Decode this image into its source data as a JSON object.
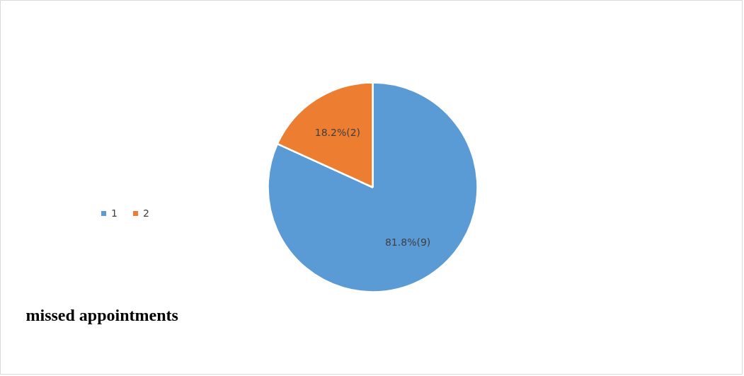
{
  "chart_data": {
    "type": "pie",
    "title": "missed appointments",
    "categories": [
      "1",
      "2"
    ],
    "values": [
      9,
      2
    ],
    "colors": [
      "#5b9bd5",
      "#ed7d31"
    ],
    "value_labels": [
      "81.8%(9)",
      "18.2%(2)"
    ],
    "legend": "left"
  }
}
